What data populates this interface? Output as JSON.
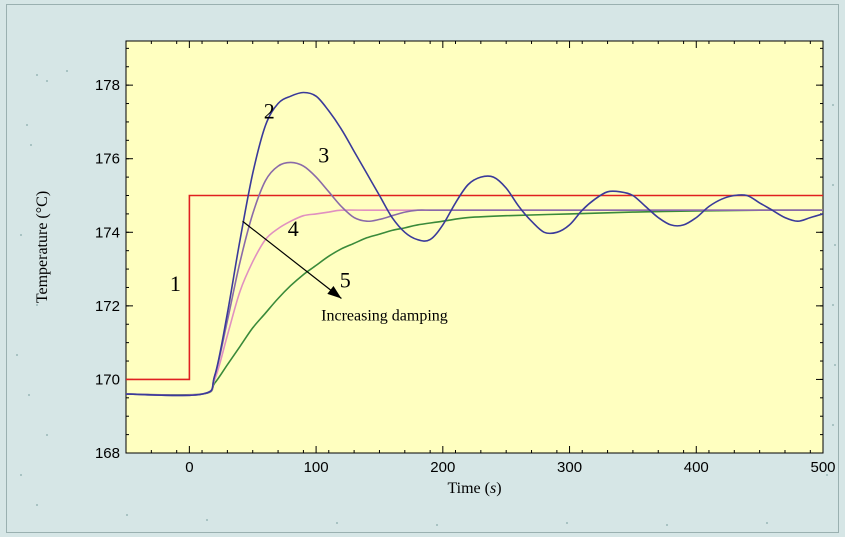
{
  "chart_data": {
    "type": "line",
    "xlabel_prefix": "Time (",
    "xlabel_unit": "s",
    "xlabel_suffix": ")",
    "ylabel": "Temperature (°C)",
    "xlim": [
      -50,
      500
    ],
    "ylim": [
      168,
      179.2
    ],
    "xticks": [
      0,
      100,
      200,
      300,
      400,
      500
    ],
    "yticks": [
      168,
      170,
      172,
      174,
      176,
      178
    ],
    "grid": false,
    "series": [
      {
        "name": "1",
        "color": "#e02020",
        "x": [
          -50,
          0,
          0,
          500
        ],
        "y": [
          170.0,
          170.0,
          175.0,
          175.0
        ]
      },
      {
        "name": "2",
        "color": "#3a3a9a",
        "x": [
          -50,
          10,
          20,
          30,
          40,
          50,
          60,
          70,
          80,
          90,
          100,
          110,
          120,
          130,
          140,
          150,
          160,
          170,
          180,
          190,
          200,
          210,
          220,
          230,
          240,
          250,
          260,
          270,
          280,
          290,
          300,
          310,
          320,
          330,
          340,
          350,
          360,
          370,
          380,
          390,
          400,
          410,
          420,
          430,
          440,
          450,
          460,
          470,
          480,
          490,
          500
        ],
        "y": [
          169.6,
          169.6,
          170.1,
          171.8,
          173.8,
          175.6,
          176.9,
          177.5,
          177.7,
          177.8,
          177.7,
          177.3,
          176.8,
          176.2,
          175.6,
          175.0,
          174.4,
          174.0,
          173.8,
          173.8,
          174.2,
          174.8,
          175.3,
          175.5,
          175.5,
          175.2,
          174.7,
          174.3,
          174.0,
          174.0,
          174.2,
          174.6,
          174.9,
          175.1,
          175.1,
          175.0,
          174.7,
          174.4,
          174.2,
          174.2,
          174.4,
          174.7,
          174.9,
          175.0,
          175.0,
          174.8,
          174.6,
          174.4,
          174.3,
          174.4,
          174.5
        ]
      },
      {
        "name": "3",
        "color": "#8a6aa8",
        "x": [
          -50,
          10,
          20,
          30,
          40,
          50,
          60,
          70,
          80,
          90,
          100,
          110,
          120,
          130,
          140,
          150,
          160,
          170,
          180,
          190,
          200,
          220,
          250,
          300,
          350,
          400,
          450,
          500
        ],
        "y": [
          169.6,
          169.6,
          170.1,
          171.6,
          173.2,
          174.5,
          175.4,
          175.8,
          175.9,
          175.8,
          175.5,
          175.1,
          174.7,
          174.4,
          174.3,
          174.35,
          174.45,
          174.55,
          174.6,
          174.6,
          174.6,
          174.6,
          174.6,
          174.6,
          174.6,
          174.6,
          174.6,
          174.6
        ]
      },
      {
        "name": "4",
        "color": "#e090c0",
        "x": [
          -50,
          10,
          20,
          30,
          40,
          50,
          60,
          70,
          80,
          90,
          100,
          110,
          120,
          140,
          160,
          200,
          300,
          400,
          500
        ],
        "y": [
          169.6,
          169.6,
          170.0,
          171.2,
          172.4,
          173.2,
          173.8,
          174.1,
          174.3,
          174.45,
          174.5,
          174.55,
          174.6,
          174.6,
          174.6,
          174.6,
          174.6,
          174.6,
          174.6
        ]
      },
      {
        "name": "5",
        "color": "#3a8a3a",
        "x": [
          -50,
          10,
          20,
          30,
          40,
          50,
          60,
          70,
          80,
          90,
          100,
          110,
          120,
          130,
          140,
          150,
          160,
          170,
          180,
          200,
          220,
          250,
          300,
          350,
          400,
          450,
          500
        ],
        "y": [
          169.6,
          169.6,
          169.9,
          170.4,
          170.9,
          171.4,
          171.8,
          172.2,
          172.55,
          172.85,
          173.1,
          173.35,
          173.55,
          173.7,
          173.85,
          173.95,
          174.05,
          174.12,
          174.2,
          174.3,
          174.4,
          174.45,
          174.5,
          174.55,
          174.58,
          174.6,
          174.6
        ]
      }
    ],
    "labels": [
      {
        "text": "1",
        "x": -11,
        "y": 172.4
      },
      {
        "text": "2",
        "x": 63,
        "y": 177.1
      },
      {
        "text": "3",
        "x": 106,
        "y": 175.9
      },
      {
        "text": "4",
        "x": 82,
        "y": 173.9
      },
      {
        "text": "5",
        "x": 123,
        "y": 172.5
      }
    ],
    "annotation": {
      "text": "Increasing damping",
      "arrow_from": [
        42,
        174.3
      ],
      "arrow_to": [
        120,
        172.2
      ],
      "text_at": [
        104,
        171.6
      ]
    }
  }
}
